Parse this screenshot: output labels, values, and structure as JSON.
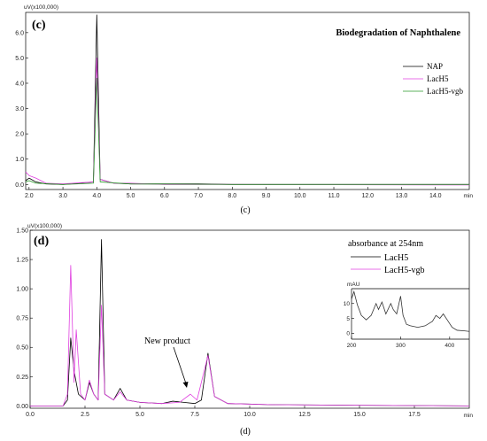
{
  "colors": {
    "black": "#000000",
    "magenta": "#e040e0",
    "green": "#2a9a2a"
  },
  "chart_data": [
    {
      "type": "line",
      "panel_label": "(c)",
      "title": "Biodegradation of Naphthalene",
      "caption": "(c)",
      "yunit": "uV(x100,000)",
      "xunit": "min",
      "xlim": [
        20.0,
        15.0
      ],
      "ylim": [
        -0.2,
        6.8
      ],
      "x_ticks": [
        "2.0",
        "3.0",
        "4.0",
        "5.0",
        "6.0",
        "7.0",
        "8.0",
        "9.0",
        "10.0",
        "11.0",
        "12.0",
        "13.0",
        "14.0"
      ],
      "y_ticks": [
        "0.0",
        "1.0",
        "2.0",
        "3.0",
        "4.0",
        "5.0",
        "6.0"
      ],
      "series": [
        {
          "name": "NAP",
          "color": "#000000",
          "points": [
            [
              1.9,
              0.15
            ],
            [
              2.0,
              0.25
            ],
            [
              2.2,
              0.1
            ],
            [
              2.5,
              0.02
            ],
            [
              3.0,
              0.0
            ],
            [
              3.5,
              0.05
            ],
            [
              3.9,
              0.1
            ],
            [
              4.0,
              6.7
            ],
            [
              4.1,
              0.2
            ],
            [
              4.5,
              0.05
            ],
            [
              5.0,
              0.02
            ],
            [
              6.0,
              0.02
            ],
            [
              7.0,
              0.02
            ],
            [
              8.0,
              0.0
            ],
            [
              15.0,
              0.0
            ]
          ]
        },
        {
          "name": "LacH5",
          "color": "#e040e0",
          "points": [
            [
              1.9,
              0.5
            ],
            [
              2.0,
              0.35
            ],
            [
              2.2,
              0.25
            ],
            [
              2.5,
              0.05
            ],
            [
              3.0,
              0.02
            ],
            [
              3.9,
              0.1
            ],
            [
              4.0,
              5.0
            ],
            [
              4.1,
              0.2
            ],
            [
              4.5,
              0.05
            ],
            [
              5.0,
              0.05
            ],
            [
              6.0,
              0.0
            ],
            [
              8.0,
              0.0
            ],
            [
              15.0,
              -0.02
            ]
          ]
        },
        {
          "name": "LacH5-vgb",
          "color": "#2a9a2a",
          "points": [
            [
              1.9,
              0.1
            ],
            [
              2.0,
              0.15
            ],
            [
              2.2,
              0.05
            ],
            [
              3.0,
              0.0
            ],
            [
              3.9,
              0.05
            ],
            [
              4.0,
              4.2
            ],
            [
              4.1,
              0.1
            ],
            [
              5.0,
              0.02
            ],
            [
              8.0,
              0.0
            ],
            [
              15.0,
              0.0
            ]
          ]
        }
      ]
    },
    {
      "type": "line",
      "panel_label": "(d)",
      "caption": "(d)",
      "yunit": "uV(x100,000)",
      "xunit": "min",
      "xlim": [
        0.0,
        20.0
      ],
      "ylim": [
        -0.02,
        1.5
      ],
      "x_ticks": [
        "0.0",
        "2.5",
        "5.0",
        "7.5",
        "10.0",
        "12.5",
        "15.0",
        "17.5"
      ],
      "y_ticks": [
        "0.00",
        "0.25",
        "0.50",
        "0.75",
        "1.00",
        "1.25",
        "1.50"
      ],
      "annotation": "New product",
      "legend_title": "absorbance at 254nm",
      "series": [
        {
          "name": "LacH5",
          "color": "#000000",
          "points": [
            [
              0.0,
              0.0
            ],
            [
              1.5,
              0.0
            ],
            [
              1.7,
              0.05
            ],
            [
              1.85,
              0.58
            ],
            [
              2.0,
              0.3
            ],
            [
              2.2,
              0.1
            ],
            [
              2.5,
              0.05
            ],
            [
              2.7,
              0.2
            ],
            [
              2.9,
              0.1
            ],
            [
              3.1,
              0.05
            ],
            [
              3.25,
              1.42
            ],
            [
              3.4,
              0.1
            ],
            [
              3.8,
              0.05
            ],
            [
              4.1,
              0.15
            ],
            [
              4.4,
              0.05
            ],
            [
              5.0,
              0.03
            ],
            [
              6.0,
              0.02
            ],
            [
              6.5,
              0.04
            ],
            [
              7.0,
              0.03
            ],
            [
              7.5,
              0.02
            ],
            [
              7.8,
              0.05
            ],
            [
              8.1,
              0.45
            ],
            [
              8.4,
              0.08
            ],
            [
              9.0,
              0.02
            ],
            [
              11.0,
              0.01
            ],
            [
              20.0,
              0.0
            ]
          ]
        },
        {
          "name": "LacH5-vgb",
          "color": "#e040e0",
          "points": [
            [
              0.0,
              0.0
            ],
            [
              1.5,
              0.0
            ],
            [
              1.7,
              0.1
            ],
            [
              1.85,
              1.2
            ],
            [
              2.0,
              0.2
            ],
            [
              2.1,
              0.65
            ],
            [
              2.3,
              0.1
            ],
            [
              2.5,
              0.05
            ],
            [
              2.7,
              0.22
            ],
            [
              2.9,
              0.1
            ],
            [
              3.1,
              0.05
            ],
            [
              3.25,
              0.86
            ],
            [
              3.4,
              0.1
            ],
            [
              3.8,
              0.05
            ],
            [
              4.1,
              0.12
            ],
            [
              4.4,
              0.05
            ],
            [
              5.0,
              0.03
            ],
            [
              6.0,
              0.02
            ],
            [
              6.8,
              0.03
            ],
            [
              7.3,
              0.1
            ],
            [
              7.6,
              0.05
            ],
            [
              8.1,
              0.43
            ],
            [
              8.4,
              0.08
            ],
            [
              9.0,
              0.02
            ],
            [
              11.0,
              0.01
            ],
            [
              20.0,
              0.0
            ]
          ]
        }
      ],
      "inset": {
        "yunit": "mAU",
        "x_ticks": [
          "200",
          "300",
          "400"
        ],
        "y_ticks": [
          "0",
          "5",
          "10"
        ],
        "xlim": [
          200,
          440
        ],
        "ylim": [
          -2,
          15
        ],
        "points": [
          [
            200,
            11.5
          ],
          [
            205,
            14.0
          ],
          [
            212,
            9.5
          ],
          [
            220,
            6.0
          ],
          [
            230,
            4.5
          ],
          [
            240,
            6.0
          ],
          [
            250,
            10.0
          ],
          [
            255,
            8.0
          ],
          [
            262,
            10.5
          ],
          [
            270,
            6.5
          ],
          [
            280,
            10.0
          ],
          [
            285,
            8.0
          ],
          [
            292,
            6.5
          ],
          [
            300,
            12.5
          ],
          [
            305,
            6.0
          ],
          [
            312,
            3.0
          ],
          [
            320,
            2.5
          ],
          [
            335,
            2.0
          ],
          [
            350,
            2.5
          ],
          [
            365,
            4.0
          ],
          [
            372,
            6.0
          ],
          [
            380,
            5.0
          ],
          [
            387,
            6.5
          ],
          [
            395,
            4.5
          ],
          [
            405,
            2.0
          ],
          [
            415,
            1.0
          ],
          [
            430,
            0.8
          ],
          [
            440,
            0.6
          ]
        ]
      }
    }
  ]
}
